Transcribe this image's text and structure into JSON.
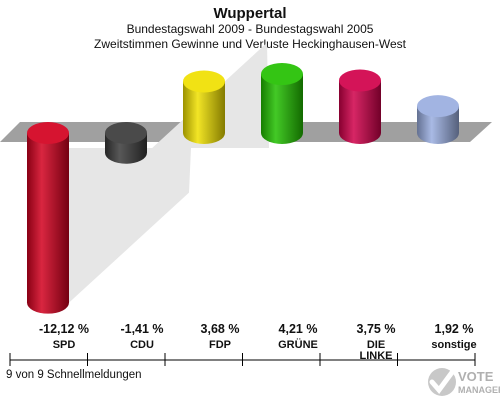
{
  "header": {
    "title": "Wuppertal",
    "subtitle1": "Bundestagswahl 2009 - Bundestagswahl 2005",
    "subtitle2": "Zweitstimmen Gewinne und Verluste Heckinghausen-West"
  },
  "chart_data": {
    "type": "bar",
    "title": "Wuppertal",
    "subtitle": "Bundestagswahl 2009 - Bundestagswahl 2005 / Zweitstimmen Gewinne und Verluste Heckinghausen-West",
    "categories": [
      "SPD",
      "CDU",
      "FDP",
      "GRÜNE",
      "DIE LINKE",
      "sonstige"
    ],
    "values": [
      -12.12,
      -1.41,
      3.68,
      4.21,
      3.75,
      1.92
    ],
    "value_labels": [
      "-12,12 %",
      "-1,41 %",
      "3,68 %",
      "4,21 %",
      "3,75 %",
      "1,92 %"
    ],
    "colors": [
      "#d2001e",
      "#3a3a3a",
      "#f0e000",
      "#22c000",
      "#d0004a",
      "#9aaee0"
    ],
    "xlabel": "",
    "ylabel": "",
    "grid": false,
    "legend": "none"
  },
  "footer": {
    "status": "9 von 9 Schnellmeldungen"
  },
  "logo": {
    "line1": "VOTE",
    "line2": "MANAGER"
  }
}
